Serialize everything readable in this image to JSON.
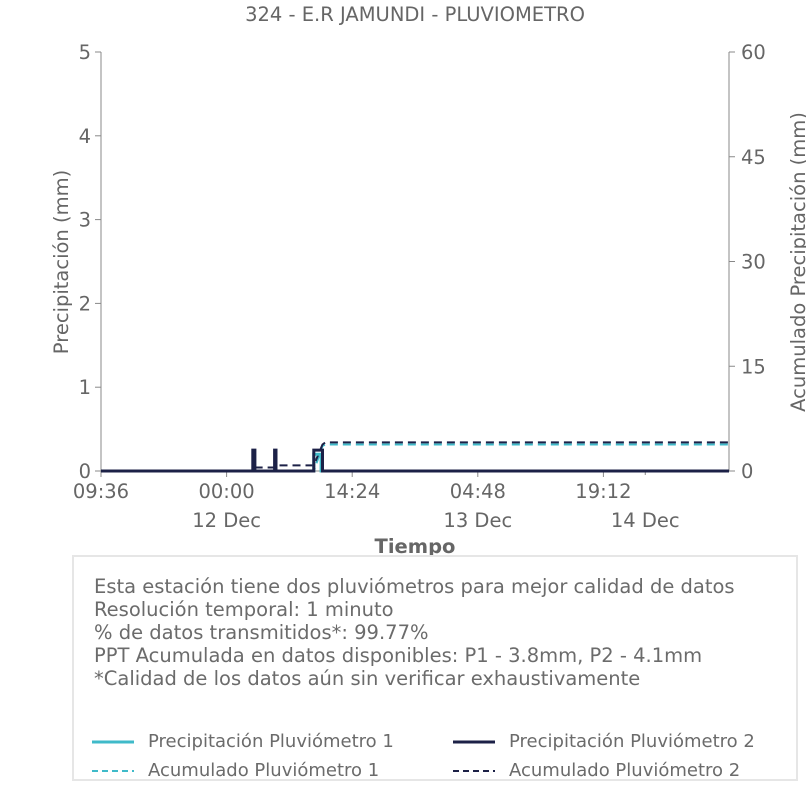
{
  "chart_data": {
    "type": "line",
    "title": "324 - E.R JAMUNDI - PLUVIOMETRO",
    "xlabel": "Tiempo",
    "ylabel": "Precipitación (mm)",
    "y2label": "Acumulado Precipitación (mm)",
    "xlim": [
      "12-11 09:36",
      "12-14 09:36"
    ],
    "ylim": [
      0,
      5
    ],
    "y2lim": [
      0,
      60
    ],
    "yticks": [
      "0",
      "1",
      "2",
      "3",
      "4",
      "5"
    ],
    "y2ticks": [
      "0",
      "15",
      "30",
      "45",
      "60"
    ],
    "xticks": [
      {
        "t": "12-11 09:36",
        "label": "09:36",
        "sub": ""
      },
      {
        "t": "12-12 00:00",
        "label": "00:00",
        "sub": "12 Dec"
      },
      {
        "t": "12-12 14:24",
        "label": "14:24",
        "sub": ""
      },
      {
        "t": "12-13 04:48",
        "label": "04:48",
        "sub": "13 Dec"
      },
      {
        "t": "12-13 19:12",
        "label": "19:12",
        "sub": ""
      }
    ],
    "xsub_only": [
      {
        "t": "12-14 00:00",
        "sub": "14 Dec"
      }
    ],
    "grid": false,
    "series": [
      {
        "name": "Precipitación Pluviómetro 1",
        "axis": "left",
        "color": "#3fbac9",
        "dash": false,
        "points": [
          [
            "12-11 09:36",
            0
          ],
          [
            "12-12 10:00",
            0
          ],
          [
            "12-12 10:00",
            0.2
          ],
          [
            "12-12 10:50",
            0.2
          ],
          [
            "12-12 10:50",
            0
          ],
          [
            "12-14 09:36",
            0
          ]
        ]
      },
      {
        "name": "Precipitación Pluviómetro 2",
        "axis": "left",
        "color": "#1c2147",
        "dash": false,
        "points": [
          [
            "12-11 09:36",
            0
          ],
          [
            "12-12 03:00",
            0
          ],
          [
            "12-12 03:00",
            0.25
          ],
          [
            "12-12 03:15",
            0.25
          ],
          [
            "12-12 03:15",
            0
          ],
          [
            "12-12 05:30",
            0
          ],
          [
            "12-12 05:30",
            0.25
          ],
          [
            "12-12 05:40",
            0.25
          ],
          [
            "12-12 05:40",
            0
          ],
          [
            "12-12 10:00",
            0
          ],
          [
            "12-12 10:00",
            0.25
          ],
          [
            "12-12 11:00",
            0.25
          ],
          [
            "12-12 11:00",
            0
          ],
          [
            "12-14 09:36",
            0
          ]
        ]
      },
      {
        "name": "Acumulado Pluviómetro 1",
        "axis": "right",
        "color": "#3fbac9",
        "dash": true,
        "points": [
          [
            "12-11 09:36",
            0
          ],
          [
            "12-12 10:00",
            0
          ],
          [
            "12-12 11:00",
            3.6
          ],
          [
            "12-12 11:20",
            3.8
          ],
          [
            "12-14 09:36",
            3.8
          ]
        ]
      },
      {
        "name": "Acumulado Pluviómetro 2",
        "axis": "right",
        "color": "#1c2147",
        "dash": true,
        "points": [
          [
            "12-11 09:36",
            0
          ],
          [
            "12-12 03:00",
            0
          ],
          [
            "12-12 03:10",
            0.5
          ],
          [
            "12-12 05:30",
            0.5
          ],
          [
            "12-12 05:40",
            0.8
          ],
          [
            "12-12 10:00",
            0.8
          ],
          [
            "12-12 11:00",
            3.8
          ],
          [
            "12-12 11:20",
            4.1
          ],
          [
            "12-14 09:36",
            4.1
          ]
        ]
      }
    ]
  },
  "info": {
    "lines": [
      "Esta estación tiene dos pluviómetros para mejor calidad de datos",
      "Resolución temporal: 1 minuto",
      "% de datos transmitidos*: 99.77%",
      "PPT Acumulada en datos disponibles: P1 - 3.8mm, P2 - 4.1mm",
      "*Calidad de los datos aún sin verificar exhaustivamente"
    ]
  },
  "legend": {
    "items": [
      {
        "label": "Precipitación Pluviómetro 1",
        "color": "#3fbac9",
        "dash": false
      },
      {
        "label": "Precipitación Pluviómetro 2",
        "color": "#1c2147",
        "dash": false
      },
      {
        "label": "Acumulado Pluviómetro 1",
        "color": "#3fbac9",
        "dash": true
      },
      {
        "label": "Acumulado Pluviómetro 2",
        "color": "#1c2147",
        "dash": true
      }
    ]
  }
}
